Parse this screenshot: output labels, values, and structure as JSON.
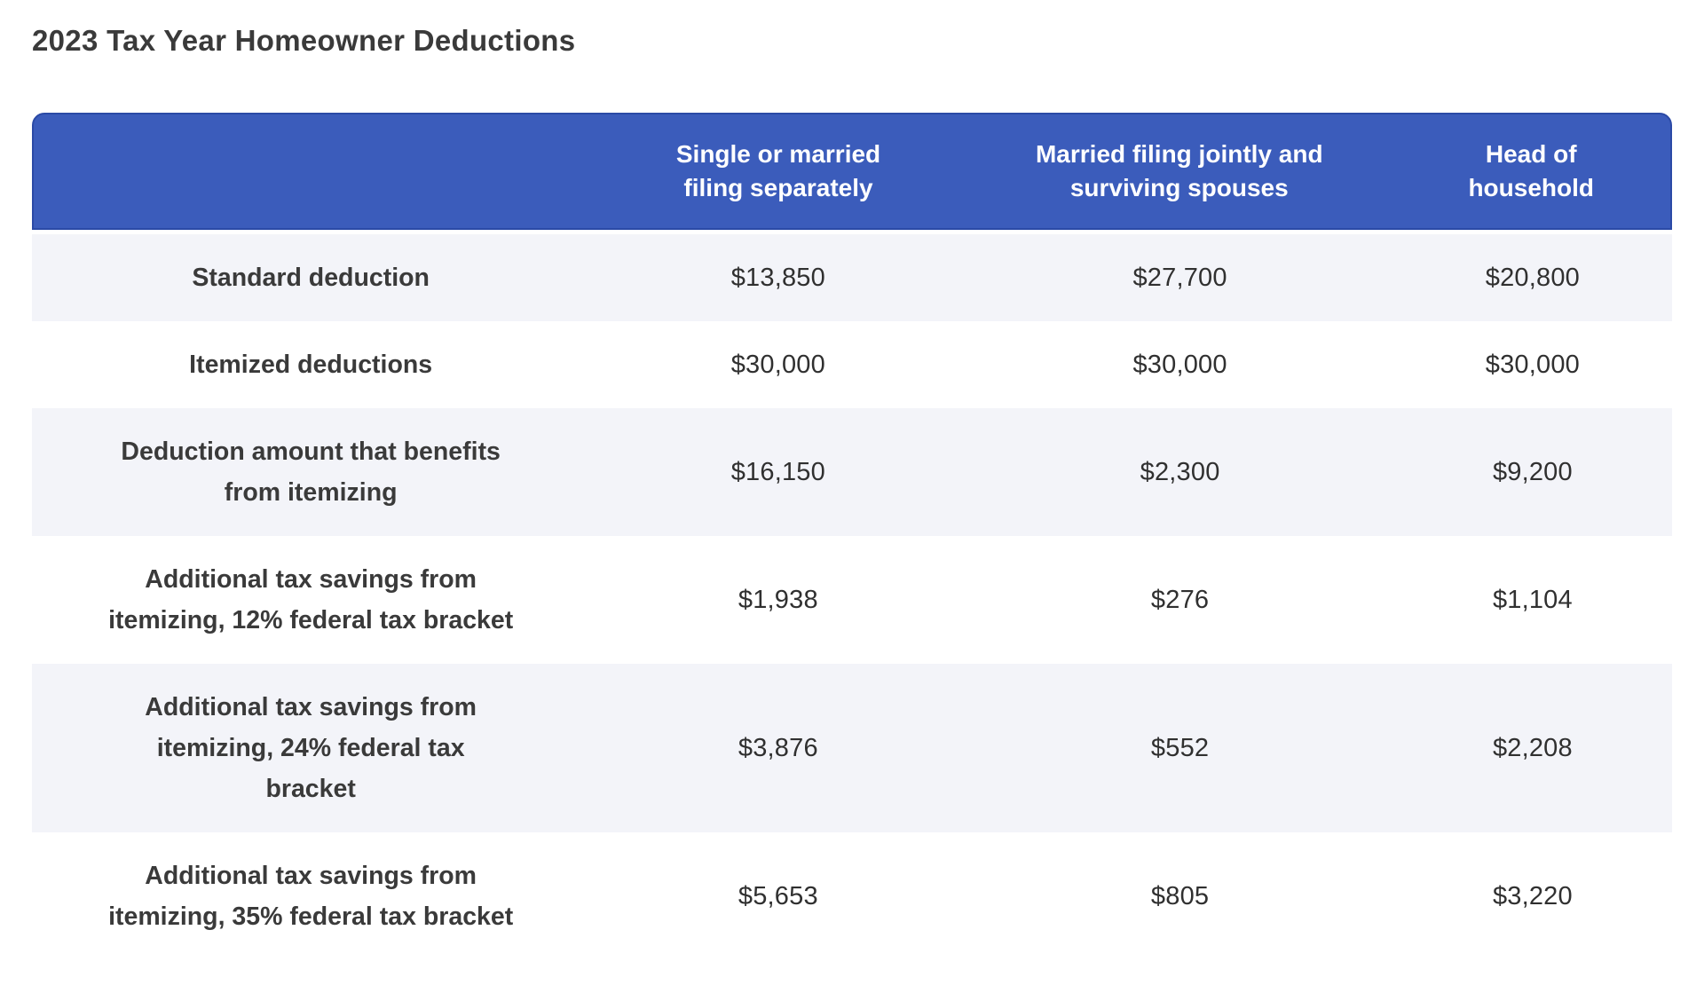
{
  "page": {
    "title": "2023 Tax Year Homeowner Deductions"
  },
  "table": {
    "header": {
      "row_label_column": "",
      "columns": [
        {
          "label": "Single or married\nfiling separately"
        },
        {
          "label": "Married filing jointly and\nsurviving spouses"
        },
        {
          "label": "Head of\nhousehold"
        }
      ]
    },
    "rows": [
      {
        "label": "Standard deduction",
        "values": [
          "$13,850",
          "$27,700",
          "$20,800"
        ]
      },
      {
        "label": "Itemized deductions",
        "values": [
          "$30,000",
          "$30,000",
          "$30,000"
        ]
      },
      {
        "label": "Deduction amount that benefits\nfrom itemizing",
        "values": [
          "$16,150",
          "$2,300",
          "$9,200"
        ]
      },
      {
        "label": "Additional tax savings from\nitemizing, 12% federal tax bracket",
        "values": [
          "$1,938",
          "$276",
          "$1,104"
        ]
      },
      {
        "label": "Additional tax savings from\nitemizing, 24% federal tax\nbracket",
        "values": [
          "$3,876",
          "$552",
          "$2,208"
        ]
      },
      {
        "label": "Additional tax savings from\nitemizing, 35% federal tax bracket",
        "values": [
          "$5,653",
          "$805",
          "$3,220"
        ]
      }
    ]
  },
  "colors": {
    "header_background": "#3B5CBB",
    "header_border": "#2B4AA6",
    "header_text": "#FFFFFF",
    "row_alt_background": "#F3F4F9",
    "row_background": "#FFFFFF",
    "title_text": "#3A3A3A",
    "body_text": "#303030"
  }
}
